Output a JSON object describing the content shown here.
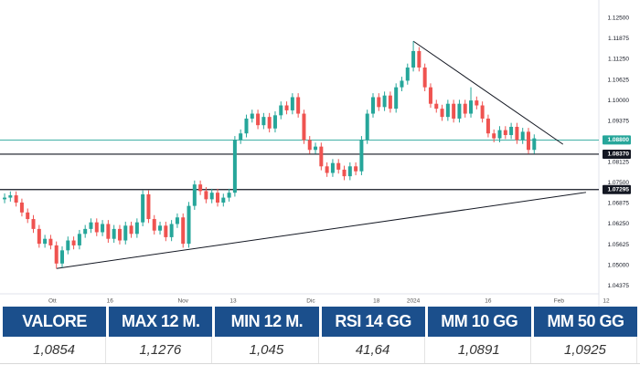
{
  "chart_data": {
    "type": "candlestick",
    "up_color": "#26a69a",
    "down_color": "#ef5350",
    "xlim": [
      -0.8,
      107.2
    ],
    "ylim": [
      1.0413,
      1.1305
    ],
    "xticks": [
      {
        "value": 8.3,
        "label": "Ott"
      },
      {
        "value": 18.3,
        "label": "16"
      },
      {
        "value": 31,
        "label": "Nov"
      },
      {
        "value": 39.7,
        "label": "13"
      },
      {
        "value": 53.2,
        "label": "Dic"
      },
      {
        "value": 64.6,
        "label": "18"
      },
      {
        "value": 71,
        "label": "2024"
      },
      {
        "value": 84,
        "label": "16"
      },
      {
        "value": 96.3,
        "label": "Feb"
      },
      {
        "value": 104.5,
        "label": "12"
      }
    ],
    "yticks": [
      {
        "value": 1.125,
        "label": "1.12500"
      },
      {
        "value": 1.11875,
        "label": "1.11875"
      },
      {
        "value": 1.1125,
        "label": "1.11250"
      },
      {
        "value": 1.10625,
        "label": "1.10625"
      },
      {
        "value": 1.1,
        "label": "1.10000"
      },
      {
        "value": 1.09375,
        "label": "1.09375"
      },
      {
        "value": 1.08125,
        "label": "1.08125"
      },
      {
        "value": 1.075,
        "label": "1.07500"
      },
      {
        "value": 1.06875,
        "label": "1.06875"
      },
      {
        "value": 1.0625,
        "label": "1.06250"
      },
      {
        "value": 1.05625,
        "label": "1.05625"
      },
      {
        "value": 1.05,
        "label": "1.05000"
      },
      {
        "value": 1.04375,
        "label": "1.04375"
      }
    ],
    "hlines": [
      {
        "value": 1.088,
        "label": "1.08800",
        "color": "#26a69a"
      },
      {
        "value": 1.0837,
        "label": "1.08370",
        "color": "#131722"
      },
      {
        "value": 1.07295,
        "label": "1.07295",
        "color": "#131722"
      }
    ],
    "trendlines": [
      {
        "x": [
          9,
          101
        ],
        "y": [
          1.049,
          1.0721
        ],
        "color": "#131722"
      },
      {
        "x": [
          71,
          97
        ],
        "y": [
          1.118,
          1.0867
        ],
        "color": "#131722"
      }
    ],
    "candles": [
      [
        1.07,
        1.0718,
        1.0688,
        1.0705
      ],
      [
        1.0705,
        1.0724,
        1.0693,
        1.0712
      ],
      [
        1.0712,
        1.0724,
        1.0678,
        1.069
      ],
      [
        1.069,
        1.0702,
        1.0648,
        1.066
      ],
      [
        1.066,
        1.0672,
        1.0628,
        1.064
      ],
      [
        1.064,
        1.0652,
        1.0598,
        1.061
      ],
      [
        1.061,
        1.0622,
        1.0553,
        1.0565
      ],
      [
        1.0565,
        1.0592,
        1.0553,
        1.058
      ],
      [
        1.058,
        1.0592,
        1.0548,
        1.056
      ],
      [
        1.056,
        1.0572,
        1.049,
        1.0505
      ],
      [
        1.0505,
        1.0557,
        1.0493,
        1.0545
      ],
      [
        1.0545,
        1.0587,
        1.0533,
        1.0575
      ],
      [
        1.0575,
        1.0587,
        1.0548,
        1.056
      ],
      [
        1.056,
        1.0607,
        1.0548,
        1.0595
      ],
      [
        1.0595,
        1.0622,
        1.0583,
        1.061
      ],
      [
        1.061,
        1.0642,
        1.0598,
        1.063
      ],
      [
        1.063,
        1.0642,
        1.0588,
        1.06
      ],
      [
        1.06,
        1.0637,
        1.0588,
        1.0625
      ],
      [
        1.0625,
        1.0637,
        1.0568,
        1.058
      ],
      [
        1.058,
        1.0622,
        1.0568,
        1.061
      ],
      [
        1.061,
        1.0622,
        1.0563,
        1.0575
      ],
      [
        1.0575,
        1.0632,
        1.0563,
        1.062
      ],
      [
        1.062,
        1.0632,
        1.0583,
        1.0595
      ],
      [
        1.0595,
        1.0642,
        1.0583,
        1.063
      ],
      [
        1.063,
        1.0727,
        1.0618,
        1.0715
      ],
      [
        1.0715,
        1.0727,
        1.0628,
        1.064
      ],
      [
        1.064,
        1.0652,
        1.0593,
        1.0605
      ],
      [
        1.0605,
        1.0632,
        1.0593,
        1.062
      ],
      [
        1.062,
        1.0632,
        1.0573,
        1.0585
      ],
      [
        1.0585,
        1.0637,
        1.0573,
        1.0625
      ],
      [
        1.0625,
        1.0657,
        1.0613,
        1.0645
      ],
      [
        1.0645,
        1.0657,
        1.0553,
        1.0565
      ],
      [
        1.0565,
        1.0692,
        1.0553,
        1.068
      ],
      [
        1.068,
        1.0757,
        1.0668,
        1.0745
      ],
      [
        1.0745,
        1.0757,
        1.0713,
        1.0725
      ],
      [
        1.0725,
        1.0737,
        1.0688,
        1.07
      ],
      [
        1.07,
        1.0732,
        1.0688,
        1.072
      ],
      [
        1.072,
        1.0732,
        1.0678,
        1.069
      ],
      [
        1.069,
        1.0717,
        1.0678,
        1.0705
      ],
      [
        1.0705,
        1.0732,
        1.0693,
        1.072
      ],
      [
        1.072,
        1.0892,
        1.0708,
        1.088
      ],
      [
        1.088,
        1.0912,
        1.0868,
        1.09
      ],
      [
        1.09,
        1.0957,
        1.0888,
        1.0945
      ],
      [
        1.0945,
        1.0972,
        1.0933,
        1.096
      ],
      [
        1.096,
        1.0972,
        1.0913,
        1.0925
      ],
      [
        1.0925,
        1.0962,
        1.0913,
        1.095
      ],
      [
        1.095,
        1.0962,
        1.0903,
        1.0915
      ],
      [
        1.0915,
        1.0967,
        1.0903,
        1.0955
      ],
      [
        1.0955,
        1.0997,
        1.0943,
        1.0985
      ],
      [
        1.0985,
        1.0997,
        1.0958,
        1.097
      ],
      [
        1.097,
        1.1022,
        1.0958,
        1.101
      ],
      [
        1.101,
        1.1022,
        1.0948,
        1.096
      ],
      [
        1.096,
        1.0972,
        1.0868,
        1.088
      ],
      [
        1.088,
        1.0892,
        1.0838,
        1.085
      ],
      [
        1.085,
        1.0872,
        1.0838,
        1.086
      ],
      [
        1.086,
        1.0872,
        1.0788,
        1.08
      ],
      [
        1.08,
        1.0812,
        1.0768,
        1.078
      ],
      [
        1.078,
        1.0822,
        1.0768,
        1.081
      ],
      [
        1.081,
        1.0822,
        1.0778,
        1.079
      ],
      [
        1.079,
        1.0802,
        1.0758,
        1.077
      ],
      [
        1.077,
        1.0812,
        1.0758,
        1.08
      ],
      [
        1.08,
        1.0812,
        1.0773,
        1.0785
      ],
      [
        1.0785,
        1.0892,
        1.0773,
        1.088
      ],
      [
        1.088,
        1.0972,
        1.0868,
        1.096
      ],
      [
        1.096,
        1.1022,
        1.0948,
        1.101
      ],
      [
        1.101,
        1.1022,
        1.0968,
        1.098
      ],
      [
        1.098,
        1.1027,
        1.0968,
        1.1015
      ],
      [
        1.1015,
        1.1027,
        1.0963,
        1.0975
      ],
      [
        1.0975,
        1.1052,
        1.0963,
        1.104
      ],
      [
        1.104,
        1.1072,
        1.1028,
        1.106
      ],
      [
        1.106,
        1.1112,
        1.1048,
        1.11
      ],
      [
        1.11,
        1.118,
        1.1088,
        1.115
      ],
      [
        1.115,
        1.1162,
        1.1088,
        1.11
      ],
      [
        1.11,
        1.1112,
        1.1028,
        1.104
      ],
      [
        1.104,
        1.1052,
        1.0978,
        1.099
      ],
      [
        1.099,
        1.1002,
        1.0963,
        1.0975
      ],
      [
        1.0975,
        1.0987,
        1.0938,
        1.095
      ],
      [
        1.095,
        1.1002,
        1.0938,
        1.099
      ],
      [
        1.099,
        1.1002,
        1.0933,
        1.0945
      ],
      [
        1.0945,
        1.1002,
        1.0933,
        1.099
      ],
      [
        1.099,
        1.1002,
        1.0948,
        1.096
      ],
      [
        1.096,
        1.104,
        1.0948,
        1.1
      ],
      [
        1.1,
        1.1012,
        1.0973,
        1.0985
      ],
      [
        1.0985,
        1.0997,
        1.0933,
        1.0945
      ],
      [
        1.0945,
        1.0957,
        1.0888,
        1.09
      ],
      [
        1.09,
        1.0912,
        1.0873,
        1.0885
      ],
      [
        1.0885,
        1.0922,
        1.0873,
        1.091
      ],
      [
        1.091,
        1.0922,
        1.0883,
        1.0895
      ],
      [
        1.0895,
        1.0932,
        1.0883,
        1.092
      ],
      [
        1.092,
        1.0932,
        1.0868,
        1.088
      ],
      [
        1.088,
        1.0917,
        1.0868,
        1.0905
      ],
      [
        1.0905,
        1.0917,
        1.0838,
        1.085
      ],
      [
        1.085,
        1.0897,
        1.0838,
        1.0885
      ]
    ]
  },
  "table": {
    "headers": [
      "VALORE",
      "MAX 12 M.",
      "MIN 12 M.",
      "RSI 14 GG",
      "MM 10 GG",
      "MM 50 GG"
    ],
    "rows": [
      [
        "1,0854",
        "1,1276",
        "1,045",
        "41,64",
        "1,0891",
        "1,0925"
      ]
    ]
  }
}
